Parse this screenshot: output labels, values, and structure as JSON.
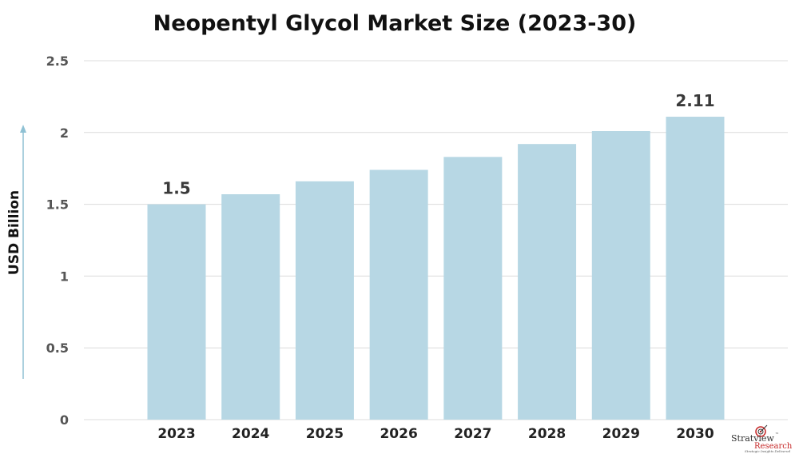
{
  "chart_data": {
    "type": "bar",
    "title": "Neopentyl Glycol Market Size (2023-30)",
    "xlabel": "",
    "ylabel": "USD Billion",
    "categories": [
      "2023",
      "2024",
      "2025",
      "2026",
      "2027",
      "2028",
      "2029",
      "2030"
    ],
    "values": [
      1.5,
      1.57,
      1.66,
      1.74,
      1.83,
      1.92,
      2.01,
      2.11
    ],
    "data_labels": [
      {
        "category": "2023",
        "text": "1.5"
      },
      {
        "category": "2030",
        "text": "2.11"
      }
    ],
    "ylim": [
      0,
      2.5
    ],
    "yticks": [
      "0",
      "0.5",
      "1",
      "1.5",
      "2",
      "2.5"
    ],
    "ytick_values": [
      0,
      0.5,
      1,
      1.5,
      2,
      2.5
    ],
    "grid": true,
    "legend": "none",
    "colors": {
      "bar": "#b7d7e4",
      "grid": "#dcdcdc",
      "axis_arrow": "#8fc1d4"
    }
  },
  "logo": {
    "brand_part1": "Stratview",
    "tm": "™",
    "brand_part2": "Research",
    "tagline": "Strategic Insights Delivered",
    "icon": "target-icon"
  }
}
